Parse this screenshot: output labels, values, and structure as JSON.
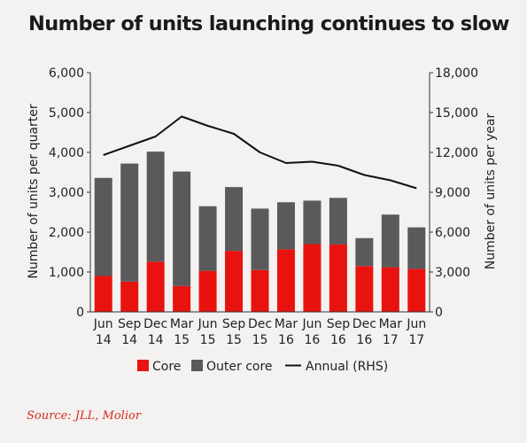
{
  "title": "Number of units launching continues to slow",
  "source": "Source: JLL, Molior",
  "colors": {
    "core": "#e8130f",
    "outer_core": "#5a5a5c",
    "annual": "#111111",
    "source": "#d62a1e"
  },
  "chart_data": {
    "type": "bar",
    "stacked": true,
    "categories": [
      [
        "Jun",
        "14"
      ],
      [
        "Sep",
        "14"
      ],
      [
        "Dec",
        "14"
      ],
      [
        "Mar",
        "15"
      ],
      [
        "Jun",
        "15"
      ],
      [
        "Sep",
        "15"
      ],
      [
        "Dec",
        "15"
      ],
      [
        "Mar",
        "16"
      ],
      [
        "Jun",
        "16"
      ],
      [
        "Sep",
        "16"
      ],
      [
        "Dec",
        "16"
      ],
      [
        "Mar",
        "17"
      ],
      [
        "Jun",
        "17"
      ]
    ],
    "series": [
      {
        "name": "Core",
        "type": "bar",
        "axis": "left",
        "values": [
          900,
          760,
          1260,
          650,
          1030,
          1530,
          1050,
          1570,
          1700,
          1690,
          1150,
          1120,
          1080
        ]
      },
      {
        "name": "Outer core",
        "type": "bar",
        "axis": "left",
        "values": [
          2460,
          2960,
          2760,
          2870,
          1620,
          1600,
          1540,
          1180,
          1090,
          1170,
          700,
          1320,
          1040
        ]
      },
      {
        "name": "Annual (RHS)",
        "type": "line",
        "axis": "right",
        "values": [
          11800,
          12500,
          13200,
          14700,
          14000,
          13400,
          12000,
          11200,
          11300,
          11000,
          10300,
          9900,
          9300
        ]
      }
    ],
    "ylabel_left": "Number of units per quarter",
    "ylabel_right": "Number of units per year",
    "ylim_left": [
      0,
      6000
    ],
    "ylim_right": [
      0,
      18000
    ],
    "yticks_left": [
      "0",
      "1,000",
      "2,000",
      "3,000",
      "4,000",
      "5,000",
      "6,000"
    ],
    "yticks_right": [
      "0",
      "3,000",
      "6,000",
      "9,000",
      "12,000",
      "15,000",
      "18,000"
    ],
    "grid": false,
    "legend_position": "bottom"
  }
}
